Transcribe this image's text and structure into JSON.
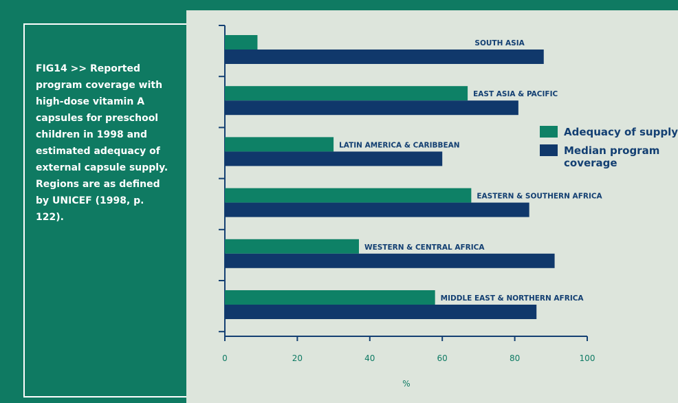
{
  "caption": "FIG14 >> Reported program coverage with high-dose vitamin A capsules for preschool children in 1998 and estimated adequacy of external capsule supply. Regions are as defined by UNICEF (1998, p. 122).",
  "colors": {
    "background": "#0f7a62",
    "panel": "#dde5dc",
    "adequacy": "#0e8166",
    "coverage": "#10386b",
    "axis": "#133f72",
    "ticks": "#0d7a63"
  },
  "chart_data": {
    "type": "bar",
    "orientation": "horizontal",
    "categories": [
      "SOUTH ASIA",
      "EAST ASIA & PACIFIC",
      "LATIN AMERICA & CARIBBEAN",
      "EASTERN & SOUTHERN AFRICA",
      "WESTERN & CENTRAL AFRICA",
      "MIDDLE EAST & NORTHERN AFRICA"
    ],
    "series": [
      {
        "name": "Adequacy of supply",
        "values": [
          9,
          67,
          30,
          68,
          37,
          58
        ]
      },
      {
        "name": "Median program coverage",
        "values": [
          88,
          81,
          60,
          84,
          91,
          86
        ]
      }
    ],
    "legend_lines": [
      [
        "Adequacy of supply"
      ],
      [
        "Median program",
        "coverage"
      ]
    ],
    "legend_position": "right",
    "xlabel": "%",
    "xticks": [
      "0",
      "20",
      "40",
      "60",
      "80",
      "100"
    ],
    "xlim": [
      0,
      100
    ],
    "grid": false
  }
}
